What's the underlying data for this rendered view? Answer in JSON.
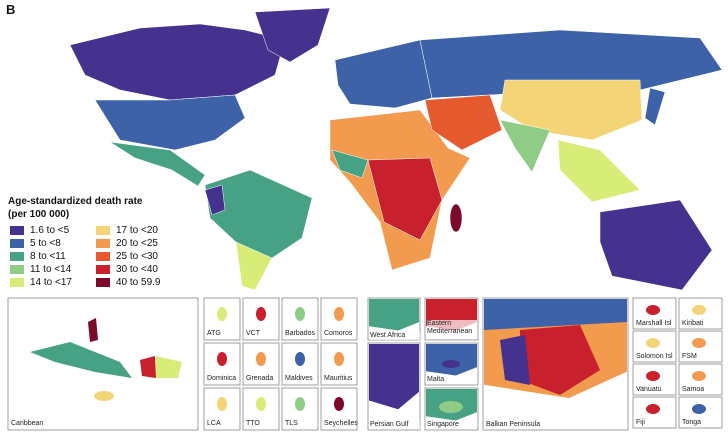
{
  "panel_label": "B",
  "legend": {
    "title": "Age-standardized death rate",
    "subtitle": "(per 100 000)",
    "items": [
      {
        "label": "1.6  to  <5",
        "color": "#45318e"
      },
      {
        "label": "5  to  <8",
        "color": "#3d62a8"
      },
      {
        "label": "8  to  <11",
        "color": "#47a184"
      },
      {
        "label": "11  to  <14",
        "color": "#8fcd86"
      },
      {
        "label": "14  to  <17",
        "color": "#d8ec78"
      },
      {
        "label": "17  to  <20",
        "color": "#f3d577"
      },
      {
        "label": "20  to  <25",
        "color": "#f29a4e"
      },
      {
        "label": "25  to  <30",
        "color": "#e65a30"
      },
      {
        "label": "30  to  <40",
        "color": "#c8202d"
      },
      {
        "label": "40  to  59.9",
        "color": "#7e0a2b"
      }
    ]
  },
  "insets": {
    "caribbean": "Caribbean",
    "small": [
      "ATG",
      "VCT",
      "Barbados",
      "Comoros",
      "Dominica",
      "Grenada",
      "Maldives",
      "Mauritius",
      "LCA",
      "TTO",
      "TLS",
      "Seychelles"
    ],
    "regions": [
      "West Africa",
      "Eastern Mediterranean",
      "Persian Gulf",
      "Malta",
      "Singapore",
      "Balkan Peninsula"
    ],
    "pacific": [
      "Marshall Isl",
      "Kiribati",
      "Solomon Isl",
      "FSM",
      "Vanuatu",
      "Samoa",
      "Fiji",
      "Tonga"
    ]
  }
}
